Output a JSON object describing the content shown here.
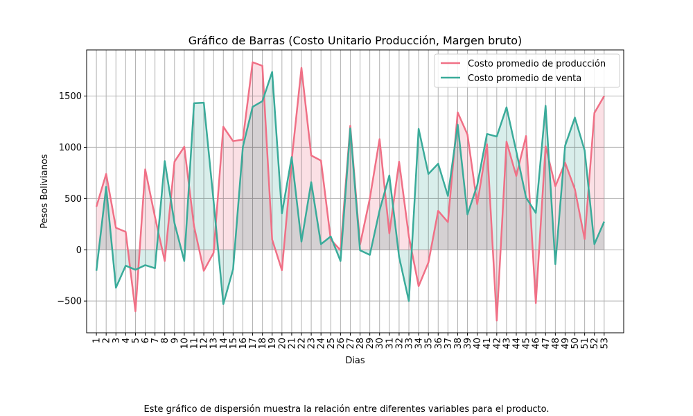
{
  "caption": "Este gráfico de dispersión muestra la relación entre diferentes variables para el producto.",
  "chart_data": {
    "type": "line",
    "title": "Gráfico de Barras (Costo Unitario Producción, Margen bruto)",
    "xlabel": "Dias",
    "ylabel": "Pesos Bolivianos",
    "x": [
      1,
      2,
      3,
      4,
      5,
      6,
      7,
      8,
      9,
      10,
      11,
      12,
      13,
      14,
      15,
      16,
      17,
      18,
      19,
      20,
      21,
      22,
      23,
      24,
      25,
      26,
      27,
      28,
      29,
      30,
      31,
      32,
      33,
      34,
      35,
      36,
      37,
      38,
      39,
      40,
      41,
      42,
      43,
      44,
      45,
      46,
      47,
      48,
      49,
      50,
      51,
      52,
      53
    ],
    "xlim": [
      0.0,
      55.0
    ],
    "ylim": [
      -810,
      1950
    ],
    "yticks": [
      -500,
      0,
      500,
      1000,
      1500
    ],
    "ytick_labels": [
      "−500",
      "0",
      "500",
      "1000",
      "1500"
    ],
    "grid": true,
    "fill_to_zero": true,
    "legend_position": "upper right",
    "series": [
      {
        "name": "Costo promedio de producción",
        "color": "#f07086",
        "fill": "#f9ccd4",
        "values": [
          420,
          740,
          215,
          175,
          -600,
          785,
          320,
          -110,
          860,
          1005,
          230,
          -205,
          -30,
          1200,
          1060,
          1075,
          1830,
          1795,
          100,
          -200,
          875,
          1775,
          920,
          870,
          100,
          -5,
          1210,
          50,
          500,
          1080,
          160,
          860,
          130,
          -355,
          -125,
          380,
          270,
          1340,
          1125,
          445,
          1030,
          -690,
          1055,
          720,
          1110,
          -520,
          1010,
          620,
          850,
          590,
          105,
          1335,
          1500
        ]
      },
      {
        "name": "Costo promedio de venta",
        "color": "#3aab9a",
        "fill": "#bfe3dd",
        "values": [
          -205,
          615,
          -370,
          -155,
          -195,
          -150,
          -180,
          865,
          260,
          -110,
          1430,
          1435,
          475,
          -530,
          -190,
          1005,
          1395,
          1450,
          1735,
          355,
          905,
          80,
          660,
          55,
          130,
          -110,
          1185,
          -5,
          -50,
          385,
          725,
          -70,
          -500,
          1180,
          740,
          840,
          525,
          1220,
          345,
          630,
          1130,
          1105,
          1390,
          960,
          510,
          360,
          1405,
          -140,
          1015,
          1290,
          970,
          55,
          275
        ]
      }
    ]
  }
}
